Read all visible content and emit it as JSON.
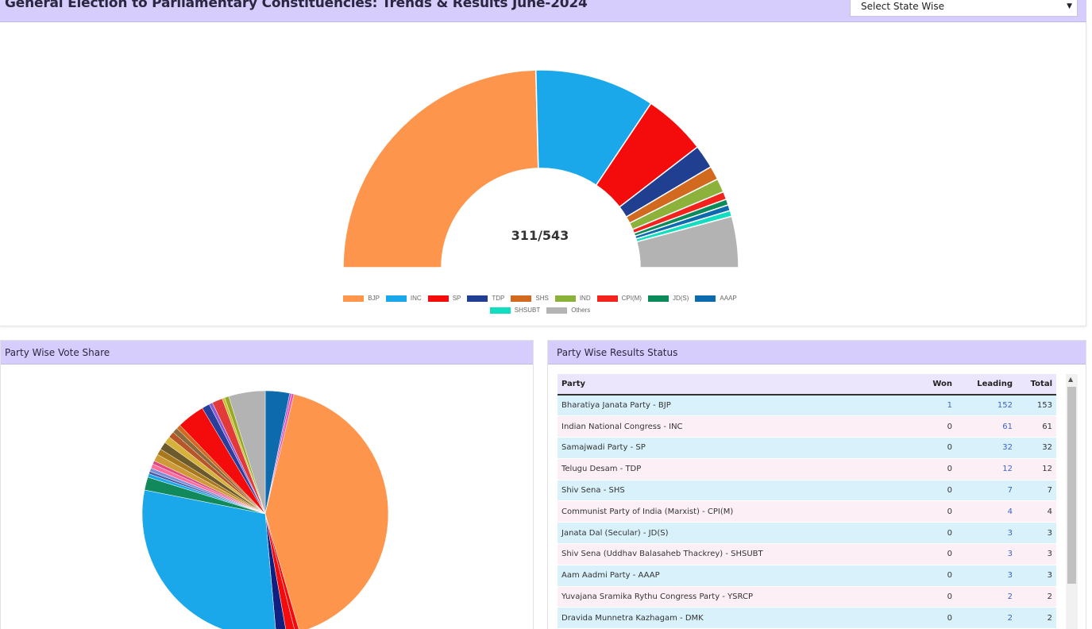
{
  "header": {
    "title": "General Election to Parliamentary Constituencies: Trends & Results June-2024",
    "state_select": {
      "selected": "Select State Wise"
    }
  },
  "seat_chart": {
    "center_label": "311/543"
  },
  "vote_share": {
    "title": "Party Wise Vote Share"
  },
  "results_status": {
    "title": "Party Wise Results Status",
    "columns": [
      "Party",
      "Won",
      "Leading",
      "Total"
    ],
    "rows": [
      {
        "party": "Bharatiya Janata Party - BJP",
        "won": "1",
        "leading": "152",
        "total": "153"
      },
      {
        "party": "Indian National Congress - INC",
        "won": "0",
        "leading": "61",
        "total": "61"
      },
      {
        "party": "Samajwadi Party - SP",
        "won": "0",
        "leading": "32",
        "total": "32"
      },
      {
        "party": "Telugu Desam - TDP",
        "won": "0",
        "leading": "12",
        "total": "12"
      },
      {
        "party": "Shiv Sena - SHS",
        "won": "0",
        "leading": "7",
        "total": "7"
      },
      {
        "party": "Communist Party of India  (Marxist) - CPI(M)",
        "won": "0",
        "leading": "4",
        "total": "4"
      },
      {
        "party": "Janata Dal  (Secular) - JD(S)",
        "won": "0",
        "leading": "3",
        "total": "3"
      },
      {
        "party": "Shiv Sena (Uddhav Balasaheb Thackrey) - SHSUBT",
        "won": "0",
        "leading": "3",
        "total": "3"
      },
      {
        "party": "Aam Aadmi Party - AAAP",
        "won": "0",
        "leading": "3",
        "total": "3"
      },
      {
        "party": "Yuvajana Sramika Rythu Congress Party - YSRCP",
        "won": "0",
        "leading": "2",
        "total": "2"
      },
      {
        "party": "Dravida Munnetra Kazhagam - DMK",
        "won": "0",
        "leading": "2",
        "total": "2"
      }
    ]
  },
  "chart_data": [
    {
      "type": "pie",
      "variant": "half-doughnut",
      "center_text": "311/543",
      "legend_position": "bottom",
      "categories": [
        "BJP",
        "INC",
        "SP",
        "TDP",
        "SHS",
        "IND",
        "CPI(M)",
        "JD(S)",
        "AAAP",
        "SHSUBT",
        "Others"
      ],
      "values": [
        153,
        61,
        32,
        12,
        7,
        7,
        4,
        3,
        3,
        3,
        26
      ],
      "colors": [
        "#fd964c",
        "#1ba8eb",
        "#f40c0c",
        "#213f90",
        "#d1691f",
        "#8db23c",
        "#f2221d",
        "#0b8a5a",
        "#0d6aad",
        "#11dec1",
        "#b3b3b3"
      ]
    },
    {
      "type": "pie",
      "legend_position": "none",
      "values": [
        2.8,
        0.2,
        0.3,
        36.6,
        0.5,
        1.0,
        1.2,
        25.9,
        1.5,
        0.4,
        0.3,
        0.4,
        0.5,
        0.4,
        0.8,
        0.7,
        0.9,
        0.8,
        0.7,
        0.6,
        0.5,
        3.2,
        0.9,
        0.4,
        1.2,
        0.3,
        0.5,
        4.2
      ],
      "colors": [
        "#0d6aad",
        "#9f4ad4",
        "#ef56a6",
        "#fd964c",
        "#f40c0c",
        "#f40c0c",
        "#101f80",
        "#1ba8eb",
        "#11895a",
        "#1ba8eb",
        "#4a5aa8",
        "#7a8fd6",
        "#ff6d9e",
        "#e04880",
        "#cf9b38",
        "#a8781c",
        "#6d5a2c",
        "#d6b23a",
        "#b8562a",
        "#8a6a3a",
        "#d1691f",
        "#f40c0c",
        "#2a3f9a",
        "#8c5ad4",
        "#e23a3a",
        "#c8c02a",
        "#9aa82a",
        "#b3b3b3"
      ]
    }
  ]
}
